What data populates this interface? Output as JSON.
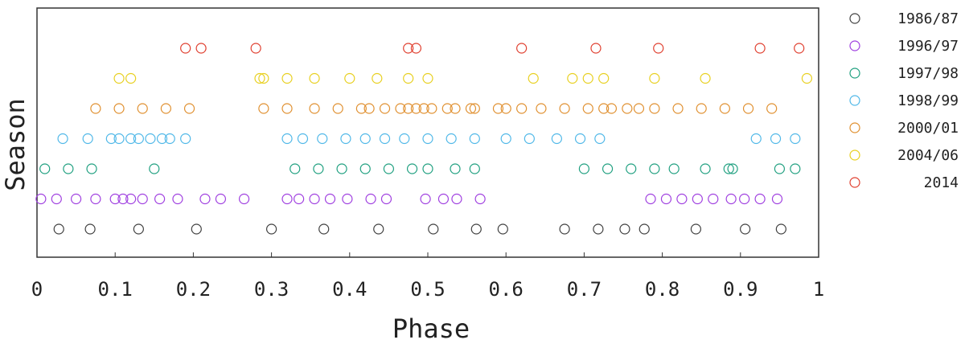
{
  "chart_data": {
    "type": "scatter",
    "title": "",
    "xlabel": "Phase",
    "ylabel": "Season",
    "xlim": [
      0,
      1
    ],
    "x_ticks": [
      "0",
      "0.1",
      "0.2",
      "0.3",
      "0.4",
      "0.5",
      "0.6",
      "0.7",
      "0.8",
      "0.9",
      "1"
    ],
    "y_ticks_shown": false,
    "grid": false,
    "legend_position": "right",
    "series": [
      {
        "name": "1986/87",
        "color": "#404040",
        "level": 0,
        "x": [
          0.028,
          0.068,
          0.13,
          0.204,
          0.3,
          0.367,
          0.437,
          0.507,
          0.562,
          0.596,
          0.675,
          0.718,
          0.752,
          0.777,
          0.843,
          0.906,
          0.952
        ]
      },
      {
        "name": "1996/97",
        "color": "#a040e0",
        "level": 1,
        "x": [
          0.005,
          0.025,
          0.05,
          0.075,
          0.1,
          0.11,
          0.12,
          0.135,
          0.157,
          0.18,
          0.215,
          0.235,
          0.265,
          0.32,
          0.335,
          0.355,
          0.375,
          0.397,
          0.427,
          0.447,
          0.497,
          0.52,
          0.537,
          0.567,
          0.785,
          0.805,
          0.825,
          0.845,
          0.865,
          0.888,
          0.905,
          0.925,
          0.947
        ]
      },
      {
        "name": "1997/98",
        "color": "#20a080",
        "level": 2,
        "x": [
          0.01,
          0.04,
          0.07,
          0.15,
          0.33,
          0.36,
          0.39,
          0.42,
          0.45,
          0.48,
          0.5,
          0.535,
          0.56,
          0.7,
          0.73,
          0.76,
          0.79,
          0.815,
          0.855,
          0.885,
          0.89,
          0.95,
          0.97
        ]
      },
      {
        "name": "1998/99",
        "color": "#50b8e8",
        "level": 3,
        "x": [
          0.033,
          0.065,
          0.095,
          0.105,
          0.12,
          0.13,
          0.145,
          0.16,
          0.17,
          0.19,
          0.32,
          0.34,
          0.365,
          0.395,
          0.42,
          0.445,
          0.47,
          0.5,
          0.53,
          0.56,
          0.6,
          0.63,
          0.665,
          0.695,
          0.72,
          0.92,
          0.945,
          0.97
        ]
      },
      {
        "name": "2000/01",
        "color": "#e09030",
        "level": 4,
        "x": [
          0.075,
          0.105,
          0.135,
          0.165,
          0.195,
          0.29,
          0.32,
          0.355,
          0.385,
          0.415,
          0.425,
          0.445,
          0.465,
          0.475,
          0.485,
          0.495,
          0.505,
          0.525,
          0.535,
          0.555,
          0.56,
          0.59,
          0.6,
          0.62,
          0.645,
          0.675,
          0.705,
          0.725,
          0.735,
          0.755,
          0.77,
          0.79,
          0.82,
          0.85,
          0.88,
          0.91,
          0.94
        ]
      },
      {
        "name": "2004/06",
        "color": "#e8d020",
        "level": 5,
        "x": [
          0.105,
          0.12,
          0.285,
          0.29,
          0.32,
          0.355,
          0.4,
          0.435,
          0.475,
          0.5,
          0.635,
          0.685,
          0.705,
          0.725,
          0.79,
          0.855,
          0.985
        ]
      },
      {
        "name": "2014",
        "color": "#e04030",
        "level": 6,
        "x": [
          0.19,
          0.21,
          0.28,
          0.475,
          0.485,
          0.62,
          0.715,
          0.795,
          0.925,
          0.975
        ]
      }
    ]
  }
}
